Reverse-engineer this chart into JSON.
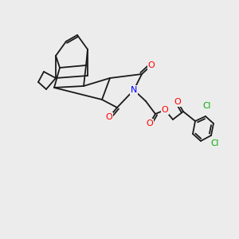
{
  "background_color": "#ececec",
  "bond_color": "#000000",
  "atom_colors": {
    "O": "#ff0000",
    "N": "#0000ff",
    "Cl": "#00aa00",
    "C": "#000000"
  },
  "font_size": 7,
  "line_width": 1.2
}
